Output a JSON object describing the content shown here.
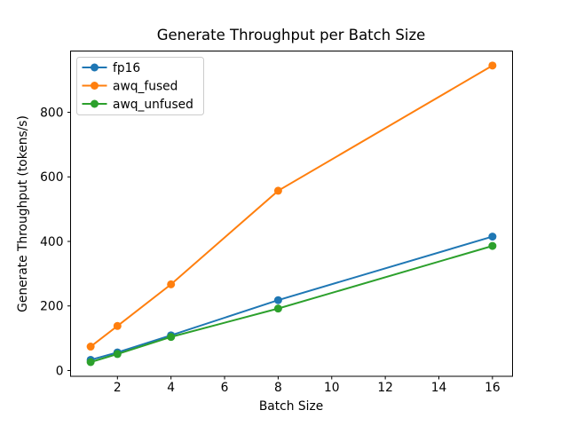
{
  "figure": {
    "background": "#ffffff",
    "spine_color": "#000000",
    "legend_frame_color": "#cccccc"
  },
  "chart_data": {
    "type": "line",
    "title": "Generate Throughput per Batch Size",
    "xlabel": "Batch Size",
    "ylabel": "Generate Throughput (tokens/s)",
    "x": [
      1,
      2,
      4,
      8,
      16
    ],
    "series": [
      {
        "name": "fp16",
        "color": "#1f77b4",
        "values": [
          33,
          56,
          109,
          218,
          415
        ]
      },
      {
        "name": "awq_fused",
        "color": "#ff7f0e",
        "values": [
          74,
          138,
          267,
          557,
          945
        ]
      },
      {
        "name": "awq_unfused",
        "color": "#2ca02c",
        "values": [
          26,
          51,
          104,
          192,
          386
        ]
      }
    ],
    "xticks": [
      2,
      4,
      6,
      8,
      10,
      12,
      14,
      16
    ],
    "yticks": [
      0,
      200,
      400,
      600,
      800
    ],
    "xlim": [
      0.25,
      16.75
    ],
    "ylim": [
      -18,
      990
    ],
    "grid": false,
    "marker": "o",
    "legend_position": "upper left"
  }
}
